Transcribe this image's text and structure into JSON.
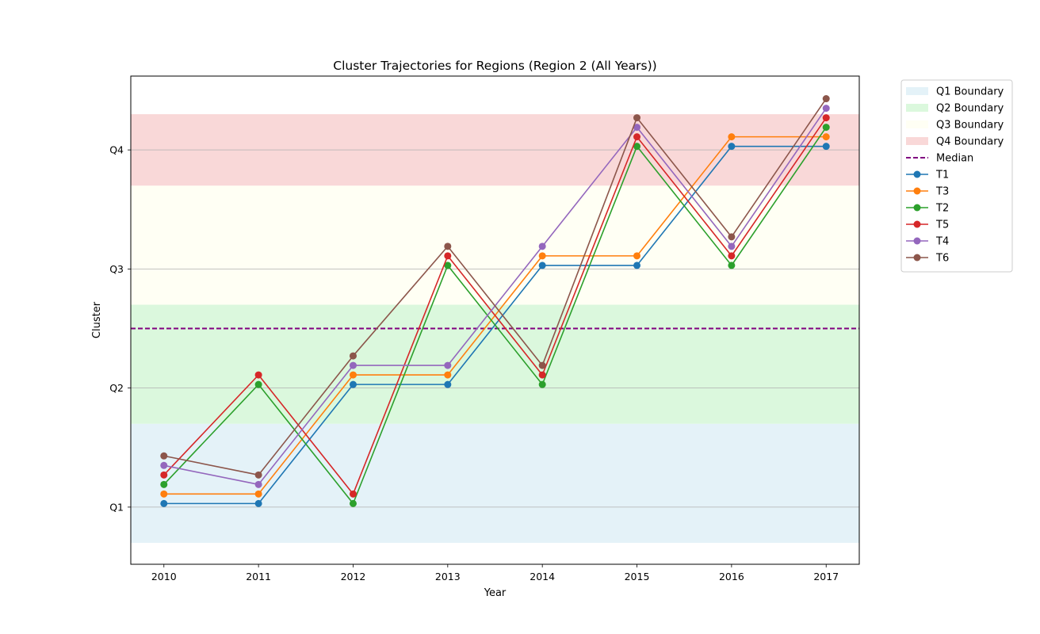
{
  "chart_data": {
    "type": "line",
    "title": "Cluster Trajectories for Regions (Region 2 (All Years))",
    "xlabel": "Year",
    "ylabel": "Cluster",
    "x": [
      2010,
      2011,
      2012,
      2013,
      2014,
      2015,
      2016,
      2017
    ],
    "x_tick_labels": [
      "2010",
      "2011",
      "2012",
      "2013",
      "2014",
      "2015",
      "2016",
      "2017"
    ],
    "xlim": [
      2009.65,
      2017.35
    ],
    "ylim": [
      0.52,
      4.62
    ],
    "y_ticks": [
      {
        "value": 1,
        "label": "Q1"
      },
      {
        "value": 2,
        "label": "Q2"
      },
      {
        "value": 3,
        "label": "Q3"
      },
      {
        "value": 4,
        "label": "Q4"
      }
    ],
    "grid": "horizontal at y ticks",
    "bands": [
      {
        "name": "Q1 Boundary",
        "from": 0.7,
        "to": 1.7,
        "color": "#e4f2f8"
      },
      {
        "name": "Q2 Boundary",
        "from": 1.7,
        "to": 2.7,
        "color": "#dbf8dd"
      },
      {
        "name": "Q3 Boundary",
        "from": 2.7,
        "to": 3.7,
        "color": "#fffff4"
      },
      {
        "name": "Q4 Boundary",
        "from": 3.7,
        "to": 4.3,
        "color": "#f9d8d8"
      }
    ],
    "median": {
      "name": "Median",
      "value": 2.5,
      "color": "#800080"
    },
    "series": [
      {
        "name": "T1",
        "color": "#1f77b4",
        "values": [
          1.03,
          1.03,
          2.03,
          2.03,
          3.03,
          3.03,
          4.03,
          4.03
        ]
      },
      {
        "name": "T3",
        "color": "#ff7f0e",
        "values": [
          1.11,
          1.11,
          2.11,
          2.11,
          3.11,
          3.11,
          4.11,
          4.11
        ]
      },
      {
        "name": "T2",
        "color": "#2ca02c",
        "values": [
          1.19,
          2.03,
          1.03,
          3.03,
          2.03,
          4.03,
          3.03,
          4.19
        ]
      },
      {
        "name": "T5",
        "color": "#d62728",
        "values": [
          1.27,
          2.11,
          1.11,
          3.11,
          2.11,
          4.11,
          3.11,
          4.27
        ]
      },
      {
        "name": "T4",
        "color": "#9467bd",
        "values": [
          1.35,
          1.19,
          2.19,
          2.19,
          3.19,
          4.19,
          3.19,
          4.35
        ]
      },
      {
        "name": "T6",
        "color": "#8c564b",
        "values": [
          1.43,
          1.27,
          2.27,
          3.19,
          2.19,
          4.27,
          3.27,
          4.43
        ]
      }
    ],
    "legend_position": "outside top-right"
  }
}
